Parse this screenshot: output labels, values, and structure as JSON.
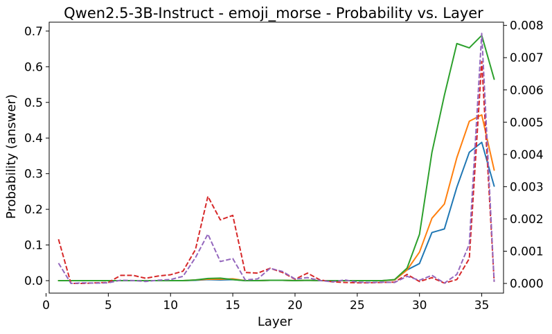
{
  "chart_data": {
    "type": "line",
    "title": "Qwen2.5-3B-Instruct - emoji_morse - Probability vs. Layer",
    "xlabel": "Layer",
    "ylabel": "Probability (answer)",
    "xlim": [
      0.25,
      36.75
    ],
    "ylim": [
      -0.035,
      0.725
    ],
    "y2lim": [
      -0.0003,
      0.0081
    ],
    "xticks": [
      0,
      5,
      10,
      15,
      20,
      25,
      30,
      35
    ],
    "yticks": [
      0.0,
      0.1,
      0.2,
      0.3,
      0.4,
      0.5,
      0.6,
      0.7
    ],
    "y2ticks": [
      0.0,
      0.001,
      0.002,
      0.003,
      0.004,
      0.005,
      0.006,
      0.007,
      0.008
    ],
    "ytick_labels": [
      "0.0",
      "0.1",
      "0.2",
      "0.3",
      "0.4",
      "0.5",
      "0.6",
      "0.7"
    ],
    "y2tick_labels": [
      "0.000",
      "0.001",
      "0.002",
      "0.003",
      "0.004",
      "0.005",
      "0.006",
      "0.007",
      "0.008"
    ],
    "x": [
      1,
      2,
      3,
      4,
      5,
      6,
      7,
      8,
      9,
      10,
      11,
      12,
      13,
      14,
      15,
      16,
      17,
      18,
      19,
      20,
      21,
      22,
      23,
      24,
      25,
      26,
      27,
      28,
      29,
      30,
      31,
      32,
      33,
      34,
      35,
      36
    ],
    "series": [
      {
        "axis": "left",
        "color": "#1f77b4",
        "style": "solid",
        "values": [
          0,
          0,
          0,
          0,
          0,
          0,
          0,
          0,
          0,
          0,
          0,
          0.001,
          0.003,
          0.002,
          0.003,
          0,
          0,
          0.001,
          0.001,
          0,
          0.001,
          0,
          0,
          0,
          0,
          0,
          0,
          0.002,
          0.03,
          0.048,
          0.135,
          0.145,
          0.262,
          0.36,
          0.388,
          0.265
        ]
      },
      {
        "axis": "left",
        "color": "#ff7f0e",
        "style": "solid",
        "values": [
          0,
          0,
          0,
          0,
          0,
          0,
          0,
          0,
          0,
          0,
          0,
          0.002,
          0.004,
          0.004,
          0.005,
          0,
          0,
          0.001,
          0.001,
          0,
          0.001,
          0,
          0,
          0,
          0,
          0,
          0,
          0.002,
          0.03,
          0.08,
          0.175,
          0.215,
          0.345,
          0.447,
          0.465,
          0.31
        ]
      },
      {
        "axis": "left",
        "color": "#2ca02c",
        "style": "solid",
        "values": [
          0,
          0,
          0,
          0,
          0,
          0,
          0,
          0,
          0,
          0,
          0,
          0.002,
          0.006,
          0.007,
          0.003,
          0,
          0,
          0.001,
          0.001,
          0,
          0.001,
          0,
          0,
          0,
          0,
          0,
          0,
          0.003,
          0.035,
          0.13,
          0.36,
          0.52,
          0.665,
          0.653,
          0.688,
          0.565
        ]
      },
      {
        "axis": "right",
        "color": "#d62728",
        "style": "dashed",
        "values": [
          0.00137,
          0.0,
          0.0,
          2e-05,
          3e-05,
          0.00025,
          0.00025,
          0.00016,
          0.00023,
          0.00027,
          0.00038,
          0.00105,
          0.0027,
          0.00197,
          0.00211,
          0.00034,
          0.00032,
          0.00047,
          0.00034,
          0.00013,
          0.00032,
          0.00011,
          5e-05,
          3e-05,
          2e-05,
          2e-05,
          3e-05,
          4e-05,
          0.00028,
          6e-05,
          0.00018,
          1e-05,
          0.00012,
          0.00077,
          0.00688,
          5e-05
        ]
      },
      {
        "axis": "right",
        "color": "#9467bd",
        "style": "dashed",
        "values": [
          0.00063,
          0.0,
          2e-05,
          1e-05,
          2e-05,
          0.0001,
          9e-05,
          6e-05,
          0.0001,
          0.00012,
          0.00022,
          0.0008,
          0.00153,
          0.00068,
          0.00077,
          0.00011,
          0.00014,
          0.00047,
          0.00037,
          0.00014,
          0.00018,
          9e-05,
          5e-05,
          0.00011,
          4e-05,
          3e-05,
          4e-05,
          3e-05,
          0.00022,
          0.0001,
          0.00025,
          1e-05,
          0.00028,
          0.00122,
          0.00775,
          5e-05
        ]
      }
    ],
    "grid": false,
    "legend": "none"
  }
}
